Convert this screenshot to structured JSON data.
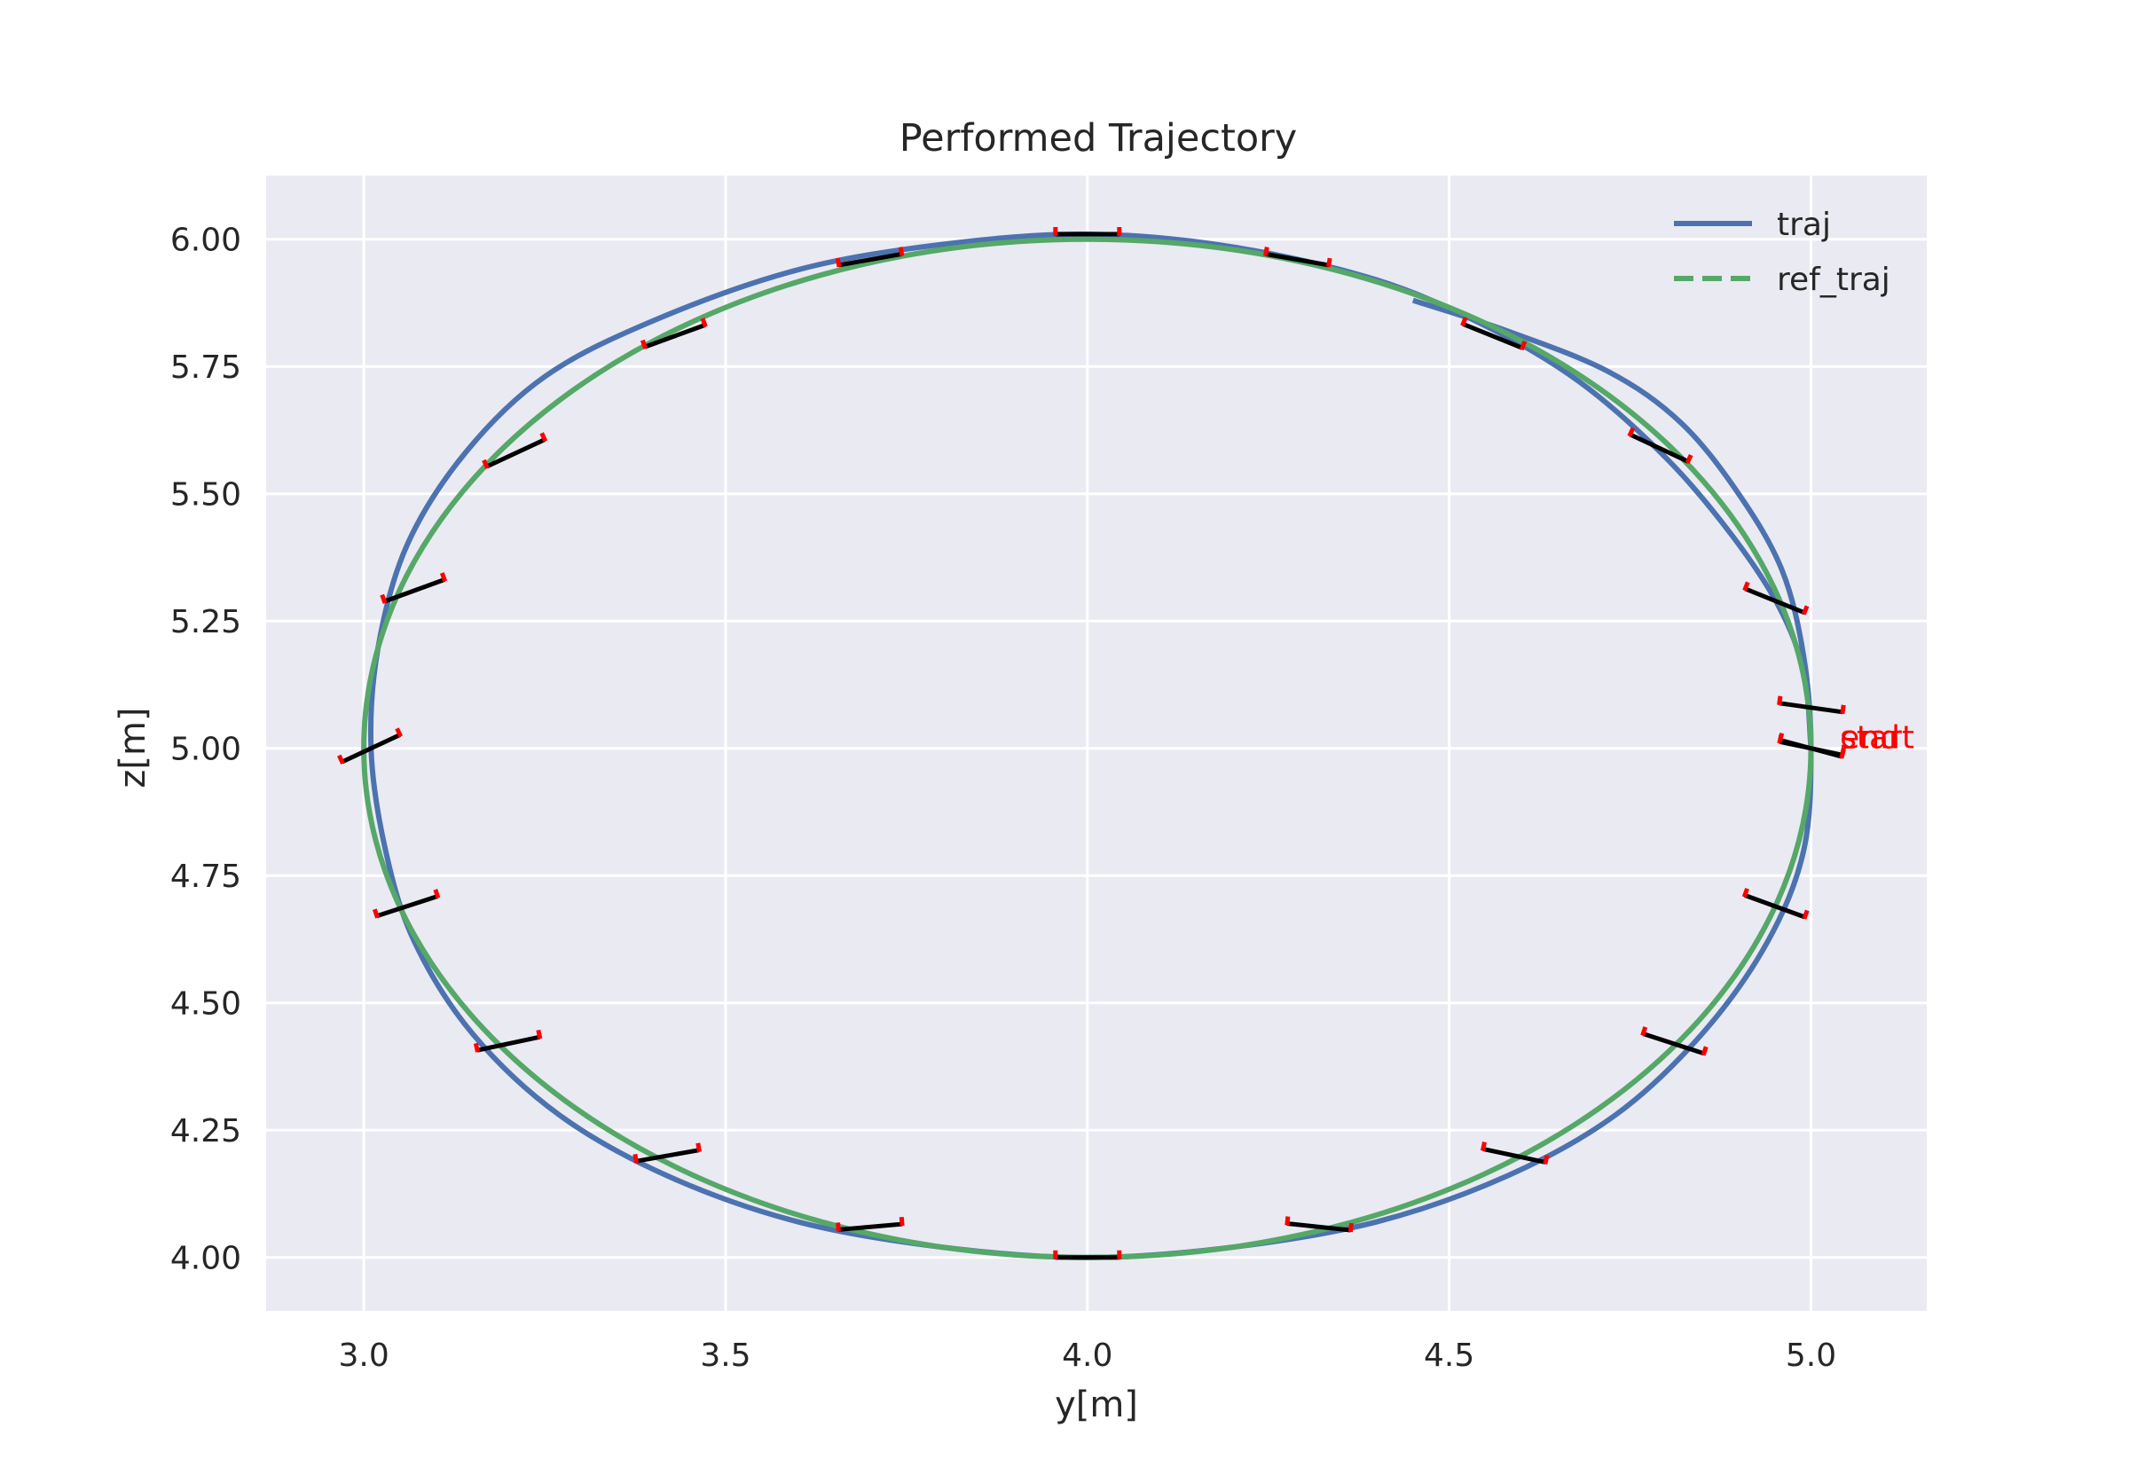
{
  "chart_data": {
    "type": "line",
    "title": "Performed Trajectory",
    "xlabel": "y[m]",
    "ylabel": "z[m]",
    "xlim": [
      2.865,
      5.16
    ],
    "ylim": [
      3.895,
      6.125
    ],
    "x_ticks": [
      3.0,
      3.5,
      4.0,
      4.5,
      5.0
    ],
    "x_tick_labels": [
      "3.0",
      "3.5",
      "4.0",
      "4.5",
      "5.0"
    ],
    "y_ticks": [
      4.0,
      4.25,
      4.5,
      4.75,
      5.0,
      5.25,
      5.5,
      5.75,
      6.0
    ],
    "y_tick_labels": [
      "4.00",
      "4.25",
      "4.50",
      "4.75",
      "5.00",
      "5.25",
      "5.50",
      "5.75",
      "6.00"
    ],
    "grid": true,
    "legend_position": "top-right",
    "series": [
      {
        "name": "traj",
        "color": "#4c72b0",
        "style": "solid",
        "points": [
          [
            5.0,
            5.0
          ],
          [
            4.99,
            5.15
          ],
          [
            4.955,
            5.28
          ],
          [
            4.89,
            5.42
          ],
          [
            4.8,
            5.57
          ],
          [
            4.68,
            5.72
          ],
          [
            4.55,
            5.83
          ],
          [
            4.4,
            5.92
          ],
          [
            4.2,
            5.985
          ],
          [
            4.0,
            6.01
          ],
          [
            3.8,
            5.99
          ],
          [
            3.6,
            5.94
          ],
          [
            3.4,
            5.84
          ],
          [
            3.25,
            5.73
          ],
          [
            3.14,
            5.58
          ],
          [
            3.06,
            5.4
          ],
          [
            3.02,
            5.2
          ],
          [
            3.01,
            5.0
          ],
          [
            3.03,
            4.8
          ],
          [
            3.07,
            4.62
          ],
          [
            3.15,
            4.44
          ],
          [
            3.27,
            4.28
          ],
          [
            3.42,
            4.16
          ],
          [
            3.6,
            4.07
          ],
          [
            3.8,
            4.02
          ],
          [
            4.0,
            4.0
          ],
          [
            4.2,
            4.02
          ],
          [
            4.4,
            4.07
          ],
          [
            4.58,
            4.16
          ],
          [
            4.73,
            4.28
          ],
          [
            4.85,
            4.44
          ],
          [
            4.94,
            4.62
          ],
          [
            4.99,
            4.8
          ],
          [
            5.0,
            5.0
          ],
          [
            4.99,
            5.18
          ],
          [
            4.96,
            5.35
          ],
          [
            4.9,
            5.5
          ],
          [
            4.82,
            5.64
          ],
          [
            4.72,
            5.74
          ],
          [
            4.58,
            5.82
          ],
          [
            4.45,
            5.88
          ]
        ]
      },
      {
        "name": "ref_traj",
        "color": "#55a868",
        "style": "dashed",
        "ellipse": {
          "center_y": 4.0,
          "center_z": 5.0,
          "radius_y": 1.0,
          "radius_z": 1.0
        }
      }
    ],
    "attitude_markers": [
      {
        "y": 5.0,
        "z": 5.0,
        "angle_deg": 12
      },
      {
        "y": 5.0,
        "z": 5.08,
        "angle_deg": 8
      },
      {
        "y": 4.95,
        "z": 5.29,
        "angle_deg": 22
      },
      {
        "y": 4.79,
        "z": 5.59,
        "angle_deg": 25
      },
      {
        "y": 4.56,
        "z": 5.81,
        "angle_deg": 22
      },
      {
        "y": 4.29,
        "z": 5.96,
        "angle_deg": 10
      },
      {
        "y": 4.0,
        "z": 6.01,
        "angle_deg": 0
      },
      {
        "y": 3.7,
        "z": 5.96,
        "angle_deg": -10
      },
      {
        "y": 3.43,
        "z": 5.81,
        "angle_deg": -20
      },
      {
        "y": 3.21,
        "z": 5.58,
        "angle_deg": -25
      },
      {
        "y": 3.07,
        "z": 5.31,
        "angle_deg": -20
      },
      {
        "y": 3.01,
        "z": 5.0,
        "angle_deg": -25
      },
      {
        "y": 3.06,
        "z": 4.69,
        "angle_deg": -18
      },
      {
        "y": 3.2,
        "z": 4.42,
        "angle_deg": -12
      },
      {
        "y": 3.42,
        "z": 4.2,
        "angle_deg": -10
      },
      {
        "y": 3.7,
        "z": 4.06,
        "angle_deg": -5
      },
      {
        "y": 4.0,
        "z": 4.0,
        "angle_deg": 0
      },
      {
        "y": 4.32,
        "z": 4.06,
        "angle_deg": 6
      },
      {
        "y": 4.59,
        "z": 4.2,
        "angle_deg": 12
      },
      {
        "y": 4.81,
        "z": 4.42,
        "angle_deg": 18
      },
      {
        "y": 4.95,
        "z": 4.69,
        "angle_deg": 20
      },
      {
        "y": 5.0,
        "z": 5.0,
        "angle_deg": 15
      }
    ],
    "annotations": [
      {
        "text": "start",
        "y": 5.04,
        "z": 5.0,
        "color": "#ff0000"
      },
      {
        "text": "end",
        "y": 5.04,
        "z": 5.0,
        "color": "#ff0000"
      }
    ]
  }
}
